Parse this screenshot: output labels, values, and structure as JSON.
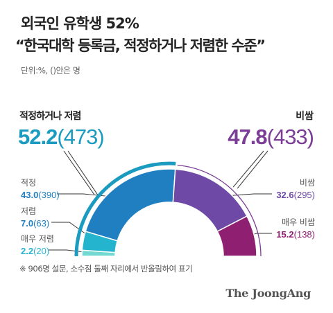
{
  "title_line1": "외국인 유학생 52%",
  "title_line2": "“한국대학 등록금, 적정하거나 저렴한 수준”",
  "unit_note": "단위:%, ()안은 명",
  "footnote": "※ 906명 설문, 소수점 둘째 자리에서 반올림하여 표기",
  "brand": "The JoongAng",
  "colors": {
    "left_group": "#1b9bbf",
    "right_group": "#7b3d96",
    "적정": "#1f7fc1",
    "저렴": "#25b4cd",
    "매우 저렴": "#72d8d2",
    "비쌈": "#6e4aa6",
    "매우 비쌈": "#8f2071"
  },
  "chart_data": {
    "type": "pie",
    "subtype": "semi-donut",
    "groups": [
      {
        "label": "적정하거나 저렴",
        "value": 52.2,
        "count": 473,
        "value_text": "52.2",
        "count_text": "(473)",
        "side": "left"
      },
      {
        "label": "비쌈",
        "value": 47.8,
        "count": 433,
        "value_text": "47.8",
        "count_text": "(433)",
        "side": "right"
      }
    ],
    "slices": [
      {
        "label": "매우 저렴",
        "value": 2.2,
        "count": 20,
        "value_text": "2.2",
        "count_text": "(20)"
      },
      {
        "label": "저렴",
        "value": 7.0,
        "count": 63,
        "value_text": "7.0",
        "count_text": "(63)"
      },
      {
        "label": "적정",
        "value": 43.0,
        "count": 390,
        "value_text": "43.0",
        "count_text": "(390)"
      },
      {
        "label": "비쌈",
        "value": 32.6,
        "count": 295,
        "value_text": "32.6",
        "count_text": "(295)"
      },
      {
        "label": "매우 비쌈",
        "value": 15.2,
        "count": 138,
        "value_text": "15.2",
        "count_text": "(138)"
      }
    ],
    "total": 100
  }
}
